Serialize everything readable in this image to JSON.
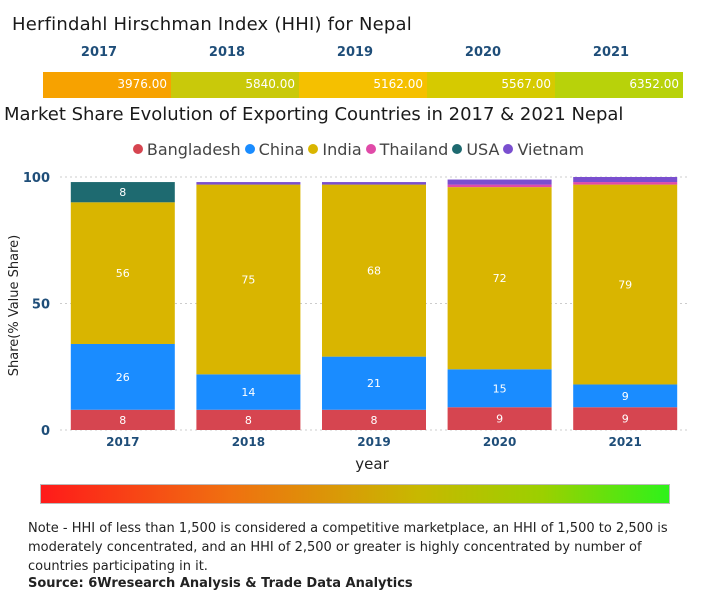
{
  "hhi": {
    "title": "Herfindahl Hirschman Index (HHI) for Nepal",
    "items": [
      {
        "year": "2017",
        "value": "3976.00",
        "color": "#f7a200"
      },
      {
        "year": "2018",
        "value": "5840.00",
        "color": "#c9c90a"
      },
      {
        "year": "2019",
        "value": "5162.00",
        "color": "#f5c000"
      },
      {
        "year": "2020",
        "value": "5567.00",
        "color": "#d6ca00"
      },
      {
        "year": "2021",
        "value": "6352.00",
        "color": "#b8d20a"
      }
    ]
  },
  "chart_data": {
    "type": "bar",
    "stacked": true,
    "title": "Market Share Evolution of Exporting Countries in 2017 & 2021 Nepal",
    "xlabel": "year",
    "ylabel": "Share(% Value Share)",
    "ylim": [
      0,
      100
    ],
    "yticks": [
      "0",
      "50",
      "100"
    ],
    "categories": [
      "2017",
      "2018",
      "2019",
      "2020",
      "2021"
    ],
    "legend_position": "top",
    "series": [
      {
        "name": "Bangladesh",
        "color": "#d64550",
        "values": [
          8,
          8,
          8,
          9,
          9
        ],
        "labels": [
          "8",
          "8",
          "8",
          "9",
          "9"
        ]
      },
      {
        "name": "China",
        "color": "#1a8cff",
        "values": [
          26,
          14,
          21,
          15,
          9
        ],
        "labels": [
          "26",
          "14",
          "21",
          "15",
          "9"
        ]
      },
      {
        "name": "India",
        "color": "#d9b500",
        "values": [
          56,
          75,
          68,
          72,
          79
        ],
        "labels": [
          "56",
          "75",
          "68",
          "72",
          "79"
        ]
      },
      {
        "name": "Thailand",
        "color": "#e04aa8",
        "values": [
          0,
          0,
          0,
          1,
          1
        ],
        "labels": [
          "",
          "",
          "",
          "",
          ""
        ]
      },
      {
        "name": "USA",
        "color": "#1e6a70",
        "values": [
          8,
          0,
          0,
          0,
          0
        ],
        "labels": [
          "8",
          "",
          "",
          "",
          ""
        ]
      },
      {
        "name": "Vietnam",
        "color": "#7a4fcf",
        "values": [
          0,
          1,
          1,
          2,
          2
        ],
        "labels": [
          "",
          "",
          "",
          "",
          ""
        ]
      }
    ]
  },
  "note": "Note - HHI of less than 1,500 is considered a competitive marketplace, an HHI of 1,500 to 2,500 is moderately concentrated, and an HHI of 2,500 or greater is highly concentrated by number of countries participating in it.",
  "source": "Source: 6Wresearch Analysis & Trade Data Analytics"
}
